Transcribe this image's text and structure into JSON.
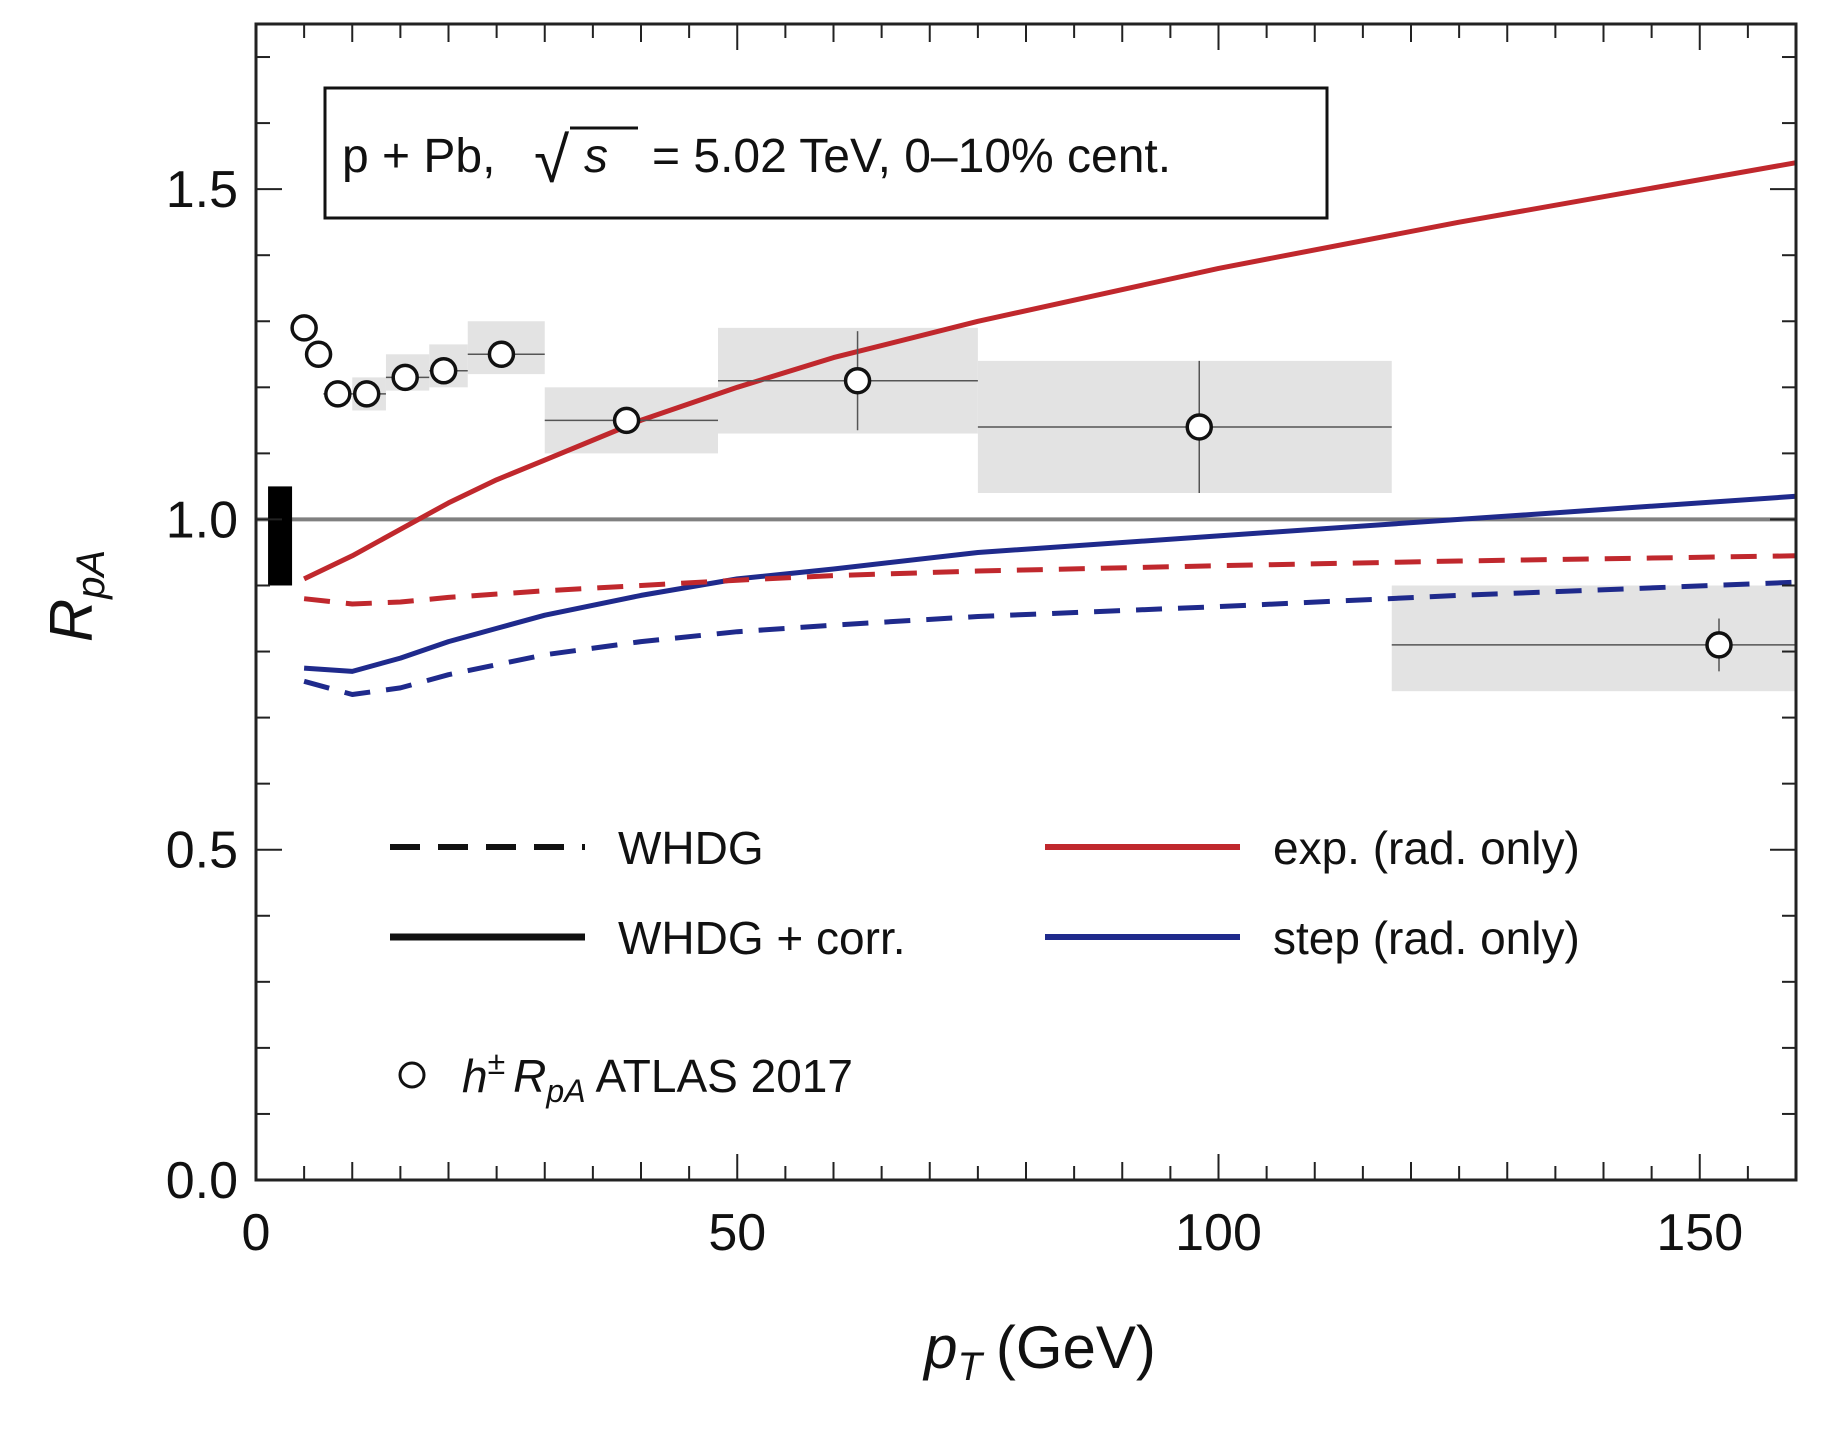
{
  "chart_data": {
    "type": "line",
    "annotation": {
      "prefix": "p + Pb,",
      "sqrt_symbol": "√",
      "sqrt_arg": "s",
      "suffix": "= 5.02 TeV, 0–10% cent."
    },
    "xlabel": {
      "var": "p",
      "sub": "T",
      "unit": "(GeV)"
    },
    "ylabel": {
      "var": "R",
      "sub": "pA"
    },
    "xlim": [
      0,
      160
    ],
    "ylim": [
      0,
      1.75
    ],
    "x_ticks": [
      0,
      50,
      100,
      150
    ],
    "x_tick_labels": [
      "0",
      "50",
      "100",
      "150"
    ],
    "y_ticks": [
      0,
      0.5,
      1.0,
      1.5
    ],
    "y_tick_labels": [
      "0.0",
      "0.5",
      "1.0",
      "1.5"
    ],
    "reference_line": 1.0,
    "normalization_band": {
      "x": 2.5,
      "y_low": 0.9,
      "y_high": 1.05
    },
    "colors": {
      "exp": "#c0282d",
      "step": "#1f2a8c",
      "reference": "#808080",
      "sys_box": "#e3e3e3",
      "frame": "#222222"
    },
    "series": [
      {
        "key": "exp_corr",
        "name": "exp. (rad. only) — WHDG + corr.",
        "color": "#c0282d",
        "dash": false,
        "x": [
          5,
          10,
          15,
          20,
          25,
          30,
          40,
          50,
          60,
          75,
          100,
          125,
          160
        ],
        "y": [
          0.91,
          0.945,
          0.985,
          1.025,
          1.06,
          1.09,
          1.15,
          1.2,
          1.245,
          1.3,
          1.38,
          1.45,
          1.54
        ]
      },
      {
        "key": "step_corr",
        "name": "step (rad. only) — WHDG + corr.",
        "color": "#1f2a8c",
        "dash": false,
        "x": [
          5,
          10,
          15,
          20,
          25,
          30,
          40,
          50,
          60,
          75,
          100,
          125,
          160
        ],
        "y": [
          0.775,
          0.77,
          0.79,
          0.815,
          0.835,
          0.855,
          0.885,
          0.91,
          0.925,
          0.95,
          0.975,
          1.0,
          1.035
        ]
      },
      {
        "key": "exp_whdg",
        "name": "exp. (rad. only) — WHDG",
        "color": "#c0282d",
        "dash": true,
        "x": [
          5,
          10,
          15,
          20,
          30,
          40,
          50,
          60,
          75,
          100,
          125,
          160
        ],
        "y": [
          0.88,
          0.872,
          0.875,
          0.882,
          0.892,
          0.9,
          0.908,
          0.915,
          0.922,
          0.93,
          0.937,
          0.945
        ]
      },
      {
        "key": "step_whdg",
        "name": "step (rad. only) — WHDG",
        "color": "#1f2a8c",
        "dash": true,
        "x": [
          5,
          10,
          15,
          20,
          30,
          40,
          50,
          60,
          75,
          100,
          125,
          160
        ],
        "y": [
          0.755,
          0.735,
          0.745,
          0.765,
          0.795,
          0.815,
          0.83,
          0.84,
          0.853,
          0.868,
          0.885,
          0.905
        ]
      }
    ],
    "data_points": {
      "name": "h± RpA ATLAS 2017",
      "x": [
        5,
        6.5,
        8.5,
        11.5,
        15.5,
        19.5,
        25.5,
        38.5,
        62.5,
        98,
        152
      ],
      "y": [
        1.29,
        1.25,
        1.19,
        1.19,
        1.215,
        1.225,
        1.25,
        1.15,
        1.21,
        1.14,
        0.81
      ],
      "x_low": [
        4.5,
        6,
        7,
        10,
        13.5,
        18,
        22,
        30,
        48,
        75,
        118
      ],
      "x_high": [
        5.5,
        7,
        10,
        13.5,
        18,
        22,
        30,
        48,
        75,
        118,
        160
      ],
      "y_err": [
        0.0,
        0.0,
        0.0,
        0.0,
        0.0,
        0.0,
        0.0,
        0.0,
        0.075,
        0.1,
        0.04
      ],
      "sys_low": [
        1.29,
        1.25,
        1.19,
        1.165,
        1.195,
        1.2,
        1.22,
        1.1,
        1.13,
        1.04,
        0.74
      ],
      "sys_high": [
        1.29,
        1.25,
        1.19,
        1.215,
        1.25,
        1.265,
        1.3,
        1.2,
        1.29,
        1.24,
        0.9
      ]
    },
    "legend": {
      "placement": "lower-center",
      "style_entries": [
        {
          "label": "WHDG",
          "style": "dashed",
          "color": "#111111"
        },
        {
          "label": "WHDG + corr.",
          "style": "solid",
          "color": "#111111"
        }
      ],
      "color_entries": [
        {
          "label": "exp. (rad. only)",
          "color": "#c0282d"
        },
        {
          "label": "step (rad. only)",
          "color": "#1f2a8c"
        }
      ],
      "marker_entry": {
        "symbol": "h",
        "sup": "±",
        "var": "R",
        "sub": "pA",
        "text": "ATLAS 2017"
      }
    }
  }
}
